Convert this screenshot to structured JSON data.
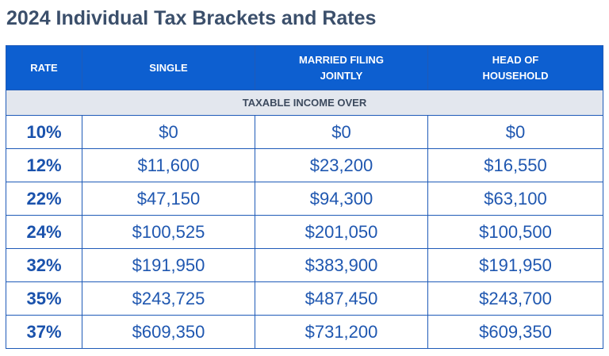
{
  "title": "2024 Individual Tax Brackets and Rates",
  "headers": {
    "rate": "RATE",
    "single": "SINGLE",
    "married_line1": "MARRIED FILING",
    "married_line2": "JOINTLY",
    "hoh_line1": "HEAD OF",
    "hoh_line2": "HOUSEHOLD"
  },
  "subheader": "TAXABLE INCOME OVER",
  "rows": [
    {
      "rate": "10%",
      "single": "$0",
      "married": "$0",
      "hoh": "$0"
    },
    {
      "rate": "12%",
      "single": "$11,600",
      "married": "$23,200",
      "hoh": "$16,550"
    },
    {
      "rate": "22%",
      "single": "$47,150",
      "married": "$94,300",
      "hoh": "$63,100"
    },
    {
      "rate": "24%",
      "single": "$100,525",
      "married": "$201,050",
      "hoh": "$100,500"
    },
    {
      "rate": "32%",
      "single": "$191,950",
      "married": "$383,900",
      "hoh": "$191,950"
    },
    {
      "rate": "35%",
      "single": "$243,725",
      "married": "$487,450",
      "hoh": "$243,700"
    },
    {
      "rate": "37%",
      "single": "$609,350",
      "married": "$731,200",
      "hoh": "$609,350"
    }
  ],
  "colors": {
    "header_bg": "#0d5fd0",
    "subheader_bg": "#e3e7ee",
    "value_text": "#1f57b0",
    "title_text": "#3b4f6b"
  }
}
